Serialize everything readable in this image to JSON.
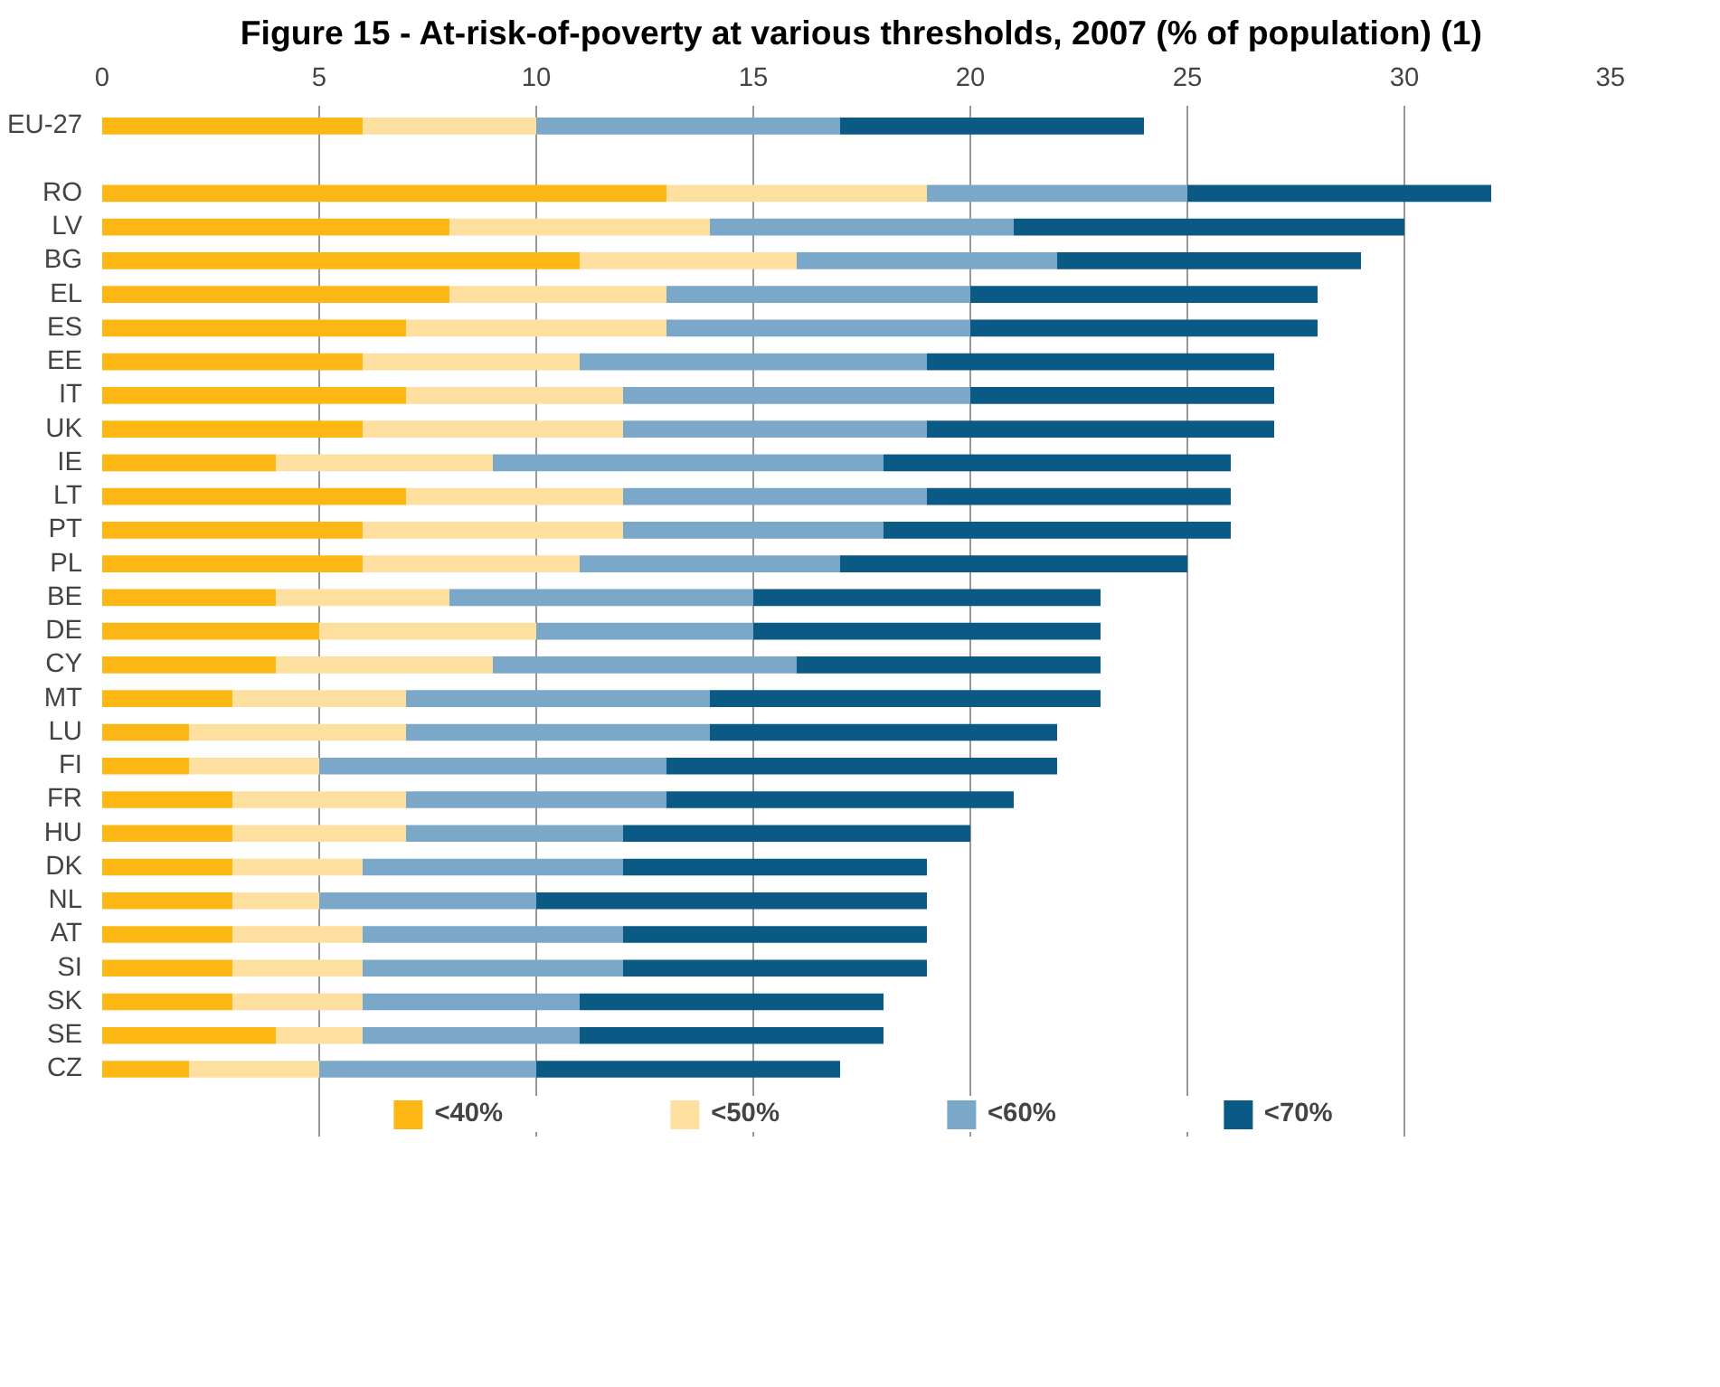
{
  "chart_data": {
    "type": "bar",
    "orientation": "horizontal",
    "stacked": true,
    "title": "Figure 15 - At-risk-of-poverty at various thresholds, 2007 (% of population) (1)",
    "categories": [
      "EU-27",
      null,
      "RO",
      "LV",
      "BG",
      "EL",
      "ES",
      "EE",
      "IT",
      "UK",
      "IE",
      "LT",
      "PT",
      "PL",
      "BE",
      "DE",
      "CY",
      "MT",
      "LU",
      "FI",
      "FR",
      "HU",
      "DK",
      "NL",
      "AT",
      "SI",
      "SK",
      "SE",
      "CZ"
    ],
    "series": [
      {
        "name": "<40%",
        "color": "#fdb714",
        "values": [
          6,
          null,
          13,
          8,
          11,
          8,
          7,
          6,
          7,
          6,
          4,
          7,
          6,
          6,
          4,
          5,
          4,
          3,
          2,
          2,
          3,
          3,
          3,
          3,
          3,
          3,
          3,
          4,
          2
        ]
      },
      {
        "name": "<50%",
        "color": "#fddf9f",
        "values": [
          4,
          null,
          6,
          6,
          5,
          5,
          6,
          5,
          5,
          6,
          5,
          5,
          6,
          5,
          4,
          5,
          5,
          4,
          5,
          3,
          4,
          4,
          3,
          2,
          3,
          3,
          3,
          2,
          3
        ]
      },
      {
        "name": "<60%",
        "color": "#7ba7c9",
        "values": [
          7,
          null,
          6,
          7,
          6,
          7,
          7,
          8,
          8,
          7,
          9,
          7,
          6,
          6,
          7,
          5,
          7,
          7,
          7,
          8,
          6,
          5,
          6,
          5,
          6,
          6,
          5,
          5,
          5
        ]
      },
      {
        "name": "<70%",
        "color": "#0b5a85",
        "values": [
          7,
          null,
          7,
          9,
          7,
          8,
          8,
          8,
          7,
          8,
          8,
          7,
          8,
          8,
          8,
          8,
          7,
          9,
          8,
          9,
          8,
          8,
          7,
          9,
          7,
          7,
          7,
          7,
          7
        ]
      }
    ],
    "xlim": [
      0,
      35
    ],
    "xticks": [
      0,
      5,
      10,
      15,
      20,
      25,
      30,
      35
    ],
    "grid": "x",
    "legend": "bottom"
  }
}
